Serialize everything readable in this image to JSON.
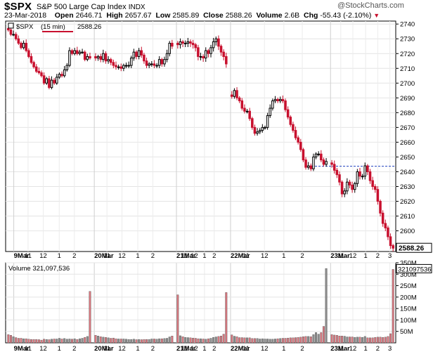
{
  "header": {
    "symbol": "$SPX",
    "name": "S&P 500 Large Cap Index",
    "type": "INDX",
    "brand": "@StockCharts.com",
    "date": "23-Mar-2018",
    "open_label": "Open",
    "open": "2646.71",
    "high_label": "High",
    "high": "2657.67",
    "low_label": "Low",
    "low": "2585.89",
    "close_label": "Close",
    "close": "2588.26",
    "volume_label": "Volume",
    "volume": "2.6B",
    "chg_label": "Chg",
    "chg": "-55.43 (-2.10%)"
  },
  "price_panel": {
    "legend_symbol": "$SPX",
    "legend_interval": "(15 min)",
    "legend_last": "2588.26",
    "last_label": "2588.26"
  },
  "volume_panel": {
    "legend": "Volume 321,097,536",
    "last_label": "321097536"
  },
  "colors": {
    "up": "#000000",
    "down": "#c8102e",
    "vol_up": "#8c8c8c",
    "vol_down": "#d9777f",
    "ref_line": "#1f3fbf",
    "underline": "#c8102e"
  },
  "chart_data": [
    {
      "type": "candlestick",
      "title": "$SPX (15 min)",
      "ylim": [
        2586,
        2742
      ],
      "y_ticks": [
        2600,
        2610,
        2620,
        2630,
        2640,
        2650,
        2660,
        2670,
        2680,
        2690,
        2700,
        2710,
        2720,
        2730,
        2740
      ],
      "ref_line": 2643.7,
      "x_labels": [
        "9Mar",
        "11",
        "12",
        "1",
        "2",
        "20Mar",
        "11",
        "12",
        "1",
        "2",
        "21Mar",
        "11",
        "12",
        "1",
        "2",
        "22Mar",
        "11",
        "12",
        "1",
        "2",
        "23Mar",
        "11",
        "12",
        "1",
        "2",
        "3"
      ],
      "x_sessions": [
        "9Mar",
        "20Mar",
        "21Mar",
        "22Mar",
        "23Mar"
      ],
      "closes": [
        [
          2736,
          2733,
          2733,
          2730,
          2727,
          2724,
          2727,
          2722,
          2718,
          2714,
          2711,
          2708,
          2707,
          2705,
          2700,
          2703,
          2697,
          2702,
          2700,
          2704,
          2706,
          2705,
          2709,
          2712,
          2722,
          2720,
          2722,
          2720,
          2721,
          2721,
          2716,
          2718,
          2717
        ],
        [
          2717,
          2718,
          2716,
          2720,
          2715,
          2716,
          2714,
          2712,
          2711,
          2711,
          2710,
          2712,
          2712,
          2712,
          2717,
          2721,
          2718,
          2722,
          2719,
          2715,
          2712,
          2713,
          2713,
          2712,
          2712,
          2716,
          2713,
          2716,
          2720,
          2727,
          2725
        ],
        [
          2726,
          2728,
          2727,
          2727,
          2728,
          2727,
          2726,
          2724,
          2718,
          2718,
          2717,
          2722,
          2720,
          2724,
          2728,
          2730,
          2725,
          2721,
          2718,
          2713
        ],
        [
          2691,
          2695,
          2690,
          2688,
          2683,
          2681,
          2681,
          2676,
          2670,
          2666,
          2667,
          2668,
          2670,
          2670,
          2678,
          2683,
          2688,
          2689,
          2688,
          2689,
          2688,
          2682,
          2677,
          2672,
          2668,
          2663,
          2660,
          2655,
          2648,
          2643,
          2644,
          2642,
          2650,
          2652,
          2652,
          2648,
          2645,
          2647
        ],
        [
          2645,
          2641,
          2638,
          2633,
          2625,
          2627,
          2633,
          2631,
          2628,
          2632,
          2640,
          2637,
          2637,
          2644,
          2640,
          2634,
          2630,
          2628,
          2620,
          2612,
          2605,
          2602,
          2596,
          2590,
          2588.26
        ]
      ]
    },
    {
      "type": "bar",
      "title": "Volume",
      "ylim": [
        0,
        350000000
      ],
      "y_ticks": [
        50000000,
        100000000,
        150000000,
        200000000,
        250000000,
        300000000,
        350000000
      ],
      "y_tick_labels": [
        "50M",
        "100M",
        "150M",
        "200M",
        "250M",
        "300M",
        "350M"
      ],
      "values": [
        [
          36000000,
          33000000,
          27000000,
          23000000,
          20000000,
          20000000,
          18000000,
          18000000,
          16000000,
          15000000,
          15000000,
          15000000,
          14000000,
          12000000,
          16000000,
          15000000,
          14000000,
          16000000,
          17000000,
          17000000,
          20000000,
          17000000,
          19000000,
          16000000,
          17000000,
          16000000,
          18000000,
          15000000,
          18000000,
          20000000,
          24000000,
          28000000,
          225000000
        ],
        [
          33000000,
          30000000,
          27000000,
          25000000,
          24000000,
          22000000,
          20000000,
          21000000,
          18000000,
          17000000,
          17000000,
          17000000,
          16000000,
          15000000,
          15000000,
          16000000,
          14000000,
          15000000,
          14000000,
          15000000,
          15000000,
          15000000,
          17000000,
          17000000,
          16000000,
          18000000,
          18000000,
          19000000,
          20000000,
          26000000,
          30000000
        ],
        [
          210000000,
          31000000,
          27000000,
          24000000,
          23000000,
          22000000,
          21000000,
          20000000,
          18000000,
          18000000,
          17000000,
          16000000,
          18000000,
          20000000,
          24000000,
          26000000,
          28000000,
          30000000,
          38000000,
          220000000
        ],
        [
          35000000,
          29000000,
          27000000,
          23000000,
          23000000,
          22000000,
          22000000,
          22000000,
          19000000,
          19000000,
          19000000,
          17000000,
          18000000,
          17000000,
          17000000,
          16000000,
          16000000,
          17000000,
          18000000,
          19000000,
          20000000,
          20000000,
          21000000,
          22000000,
          22000000,
          23000000,
          24000000,
          25000000,
          27000000,
          28000000,
          28000000,
          27000000,
          36000000,
          45000000,
          38000000,
          45000000,
          72000000,
          325000000
        ],
        [
          36000000,
          34000000,
          33000000,
          30000000,
          30000000,
          29000000,
          26000000,
          26000000,
          26000000,
          24000000,
          25000000,
          25000000,
          24000000,
          28000000,
          22000000,
          22000000,
          22000000,
          24000000,
          25000000,
          25000000,
          24000000,
          25000000,
          28000000,
          40000000,
          321097536
        ]
      ]
    }
  ]
}
